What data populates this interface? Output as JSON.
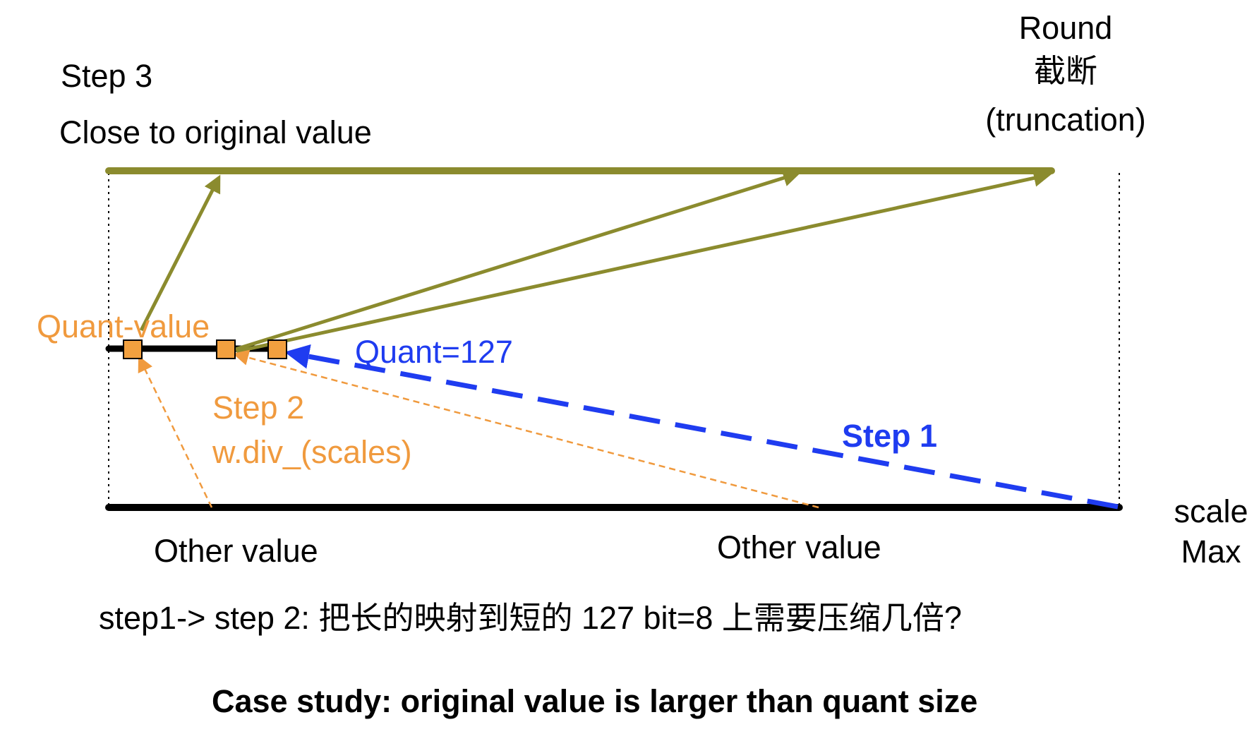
{
  "labels": {
    "step3": "Step 3",
    "close_to_original": "Close to original value",
    "round_line1": "Round",
    "round_line2": "截断",
    "round_line3": "(truncation)",
    "quant_value": "Quant-value",
    "quant_127": "Quant=127",
    "step2": "Step 2",
    "w_div_scales": "w.div_(scales)",
    "step1": "Step 1",
    "scale": "scale",
    "max": "Max",
    "other_value_left": "Other value",
    "other_value_right": "Other value",
    "question": "step1-> step 2: 把长的映射到短的 127 bit=8 上需要压缩几倍?",
    "caption": "Case study: original value is larger than quant size"
  },
  "colors": {
    "olive": "#8b8b2e",
    "orange": "#f09a3e",
    "blue": "#1f3cf0",
    "black": "#000000",
    "marker_fill": "#f2a03f"
  }
}
